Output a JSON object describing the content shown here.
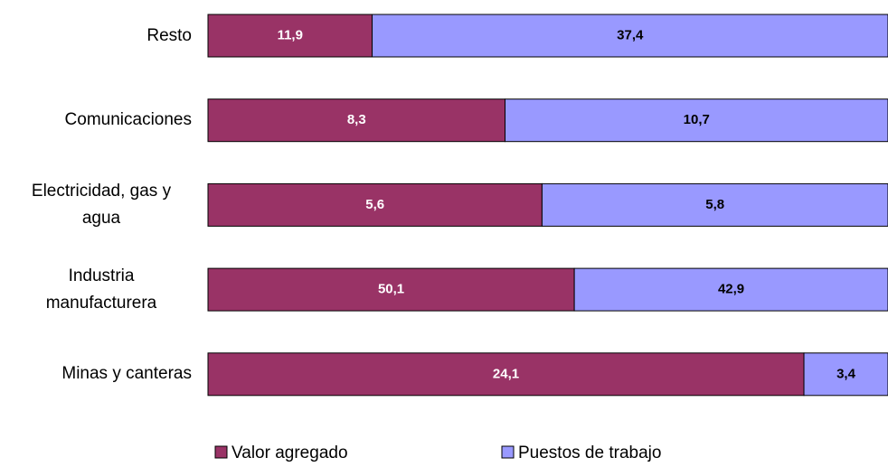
{
  "chart_data": {
    "type": "stacked_bar_100_horizontal",
    "categories": [
      "Resto",
      "Comunicaciones",
      "Electricidad, gas y agua",
      "Industria manufacturera",
      "Minas y canteras"
    ],
    "series": [
      {
        "name": "Valor agregado",
        "color": "#993366",
        "values": [
          11.9,
          8.3,
          5.6,
          50.1,
          24.1
        ],
        "value_labels": [
          "11,9",
          "8,3",
          "5,6",
          "50,1",
          "24,1"
        ]
      },
      {
        "name": "Puestos de trabajo",
        "color": "#9999ff",
        "values": [
          37.4,
          10.7,
          5.8,
          42.9,
          3.4
        ],
        "value_labels": [
          "37,4",
          "10,7",
          "5,8",
          "42,9",
          "3,4"
        ]
      }
    ],
    "legend": "bottom"
  }
}
